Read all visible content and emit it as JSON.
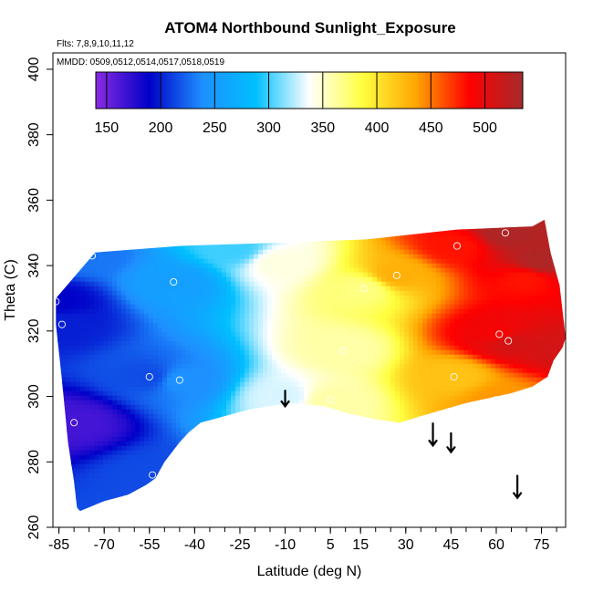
{
  "chart_data": {
    "type": "heatmap",
    "title": "ATOM4 Northbound Sunlight_Exposure",
    "subtitle": "Flts: 7,8,9,10,11,12",
    "annotation": "MMDD: 0509,0512,0514,0517,0518,0519",
    "xlabel": "Latitude (deg N)",
    "ylabel": "Theta (C)",
    "xlim": [
      -87,
      83
    ],
    "ylim": [
      260,
      405
    ],
    "xticks": [
      -85,
      -70,
      -55,
      -40,
      -25,
      -10,
      5,
      15,
      30,
      45,
      60,
      75
    ],
    "xtick_labels": [
      "-85",
      "-70",
      "-55",
      "-40",
      "-25",
      "-10",
      "5",
      "15",
      "30",
      "45",
      "60",
      "75"
    ],
    "yticks": [
      260,
      280,
      300,
      320,
      340,
      360,
      380,
      400
    ],
    "ytick_labels": [
      "260",
      "280",
      "300",
      "320",
      "340",
      "360",
      "380",
      "400"
    ],
    "colorbar": {
      "min": 140,
      "max": 535,
      "ticks": [
        150,
        200,
        250,
        300,
        350,
        400,
        450,
        500
      ],
      "tick_labels": [
        "150",
        "200",
        "250",
        "300",
        "350",
        "400",
        "450",
        "500"
      ],
      "colors": [
        "#8a2be2",
        "#0000c8",
        "#1e90ff",
        "#00bfff",
        "#ffffff",
        "#ffff40",
        "#ffa500",
        "#ff0000",
        "#a52a2a"
      ]
    },
    "field_points": [
      {
        "x": -86,
        "y": 329,
        "v": 190
      },
      {
        "x": -84,
        "y": 322,
        "v": 200
      },
      {
        "x": -80,
        "y": 292,
        "v": 165
      },
      {
        "x": -74,
        "y": 343,
        "v": 230
      },
      {
        "x": -55,
        "y": 306,
        "v": 215
      },
      {
        "x": -54,
        "y": 276,
        "v": 215
      },
      {
        "x": -47,
        "y": 335,
        "v": 255
      },
      {
        "x": -45,
        "y": 305,
        "v": 240
      },
      {
        "x": -27,
        "y": 345,
        "v": 300
      },
      {
        "x": -12,
        "y": 341,
        "v": 345
      },
      {
        "x": -10,
        "y": 300,
        "v": 330
      },
      {
        "x": 5,
        "y": 299,
        "v": 360
      },
      {
        "x": 9,
        "y": 314,
        "v": 360
      },
      {
        "x": 16,
        "y": 333,
        "v": 370
      },
      {
        "x": 27,
        "y": 337,
        "v": 430
      },
      {
        "x": 47,
        "y": 346,
        "v": 480
      },
      {
        "x": 46,
        "y": 306,
        "v": 420
      },
      {
        "x": 60,
        "y": 299,
        "v": 440
      },
      {
        "x": 61,
        "y": 319,
        "v": 490
      },
      {
        "x": 63,
        "y": 350,
        "v": 530
      },
      {
        "x": 64,
        "y": 317,
        "v": 510
      },
      {
        "x": 70,
        "y": 336,
        "v": 480
      },
      {
        "x": 75,
        "y": 341,
        "v": 530
      },
      {
        "x": 80,
        "y": 315,
        "v": 510
      }
    ],
    "observation_circles": [
      {
        "x": -86,
        "y": 329
      },
      {
        "x": -84,
        "y": 322
      },
      {
        "x": -80,
        "y": 292
      },
      {
        "x": -74,
        "y": 343
      },
      {
        "x": -55,
        "y": 306
      },
      {
        "x": -54,
        "y": 276
      },
      {
        "x": -47,
        "y": 335
      },
      {
        "x": -45,
        "y": 305
      },
      {
        "x": 5,
        "y": 299
      },
      {
        "x": 9,
        "y": 314
      },
      {
        "x": 16,
        "y": 333
      },
      {
        "x": 27,
        "y": 337
      },
      {
        "x": 47,
        "y": 346
      },
      {
        "x": 46,
        "y": 306
      },
      {
        "x": 60,
        "y": 299
      },
      {
        "x": 61,
        "y": 319
      },
      {
        "x": 63,
        "y": 350
      },
      {
        "x": 64,
        "y": 317
      }
    ],
    "region_boundary": [
      [
        -86,
        330
      ],
      [
        -73,
        344
      ],
      [
        -45,
        346
      ],
      [
        -12,
        347
      ],
      [
        17,
        348
      ],
      [
        47,
        351
      ],
      [
        72,
        352
      ],
      [
        76,
        354
      ],
      [
        78,
        344
      ],
      [
        81,
        334
      ],
      [
        83,
        318
      ],
      [
        82,
        315
      ],
      [
        79,
        311
      ],
      [
        77,
        306
      ],
      [
        72,
        303
      ],
      [
        65,
        301
      ],
      [
        50,
        298
      ],
      [
        35,
        294
      ],
      [
        28,
        292
      ],
      [
        20,
        293
      ],
      [
        10,
        295
      ],
      [
        3,
        297
      ],
      [
        -8,
        298
      ],
      [
        -15,
        297
      ],
      [
        -22,
        296
      ],
      [
        -30,
        294
      ],
      [
        -38,
        292
      ],
      [
        -42,
        289
      ],
      [
        -45,
        286
      ],
      [
        -50,
        280
      ],
      [
        -53,
        275
      ],
      [
        -56,
        273
      ],
      [
        -62,
        270
      ],
      [
        -70,
        268
      ],
      [
        -78,
        265
      ],
      [
        -79,
        266
      ],
      [
        -80,
        274
      ],
      [
        -82,
        286
      ],
      [
        -84,
        305
      ],
      [
        -86,
        322
      ]
    ],
    "arrows": [
      {
        "x": -10,
        "y_top": 302,
        "y_tip": 297
      },
      {
        "x": 39,
        "y_top": 292,
        "y_tip": 285
      },
      {
        "x": 45,
        "y_top": 289,
        "y_tip": 283
      },
      {
        "x": 67,
        "y_top": 276,
        "y_tip": 269
      }
    ]
  }
}
